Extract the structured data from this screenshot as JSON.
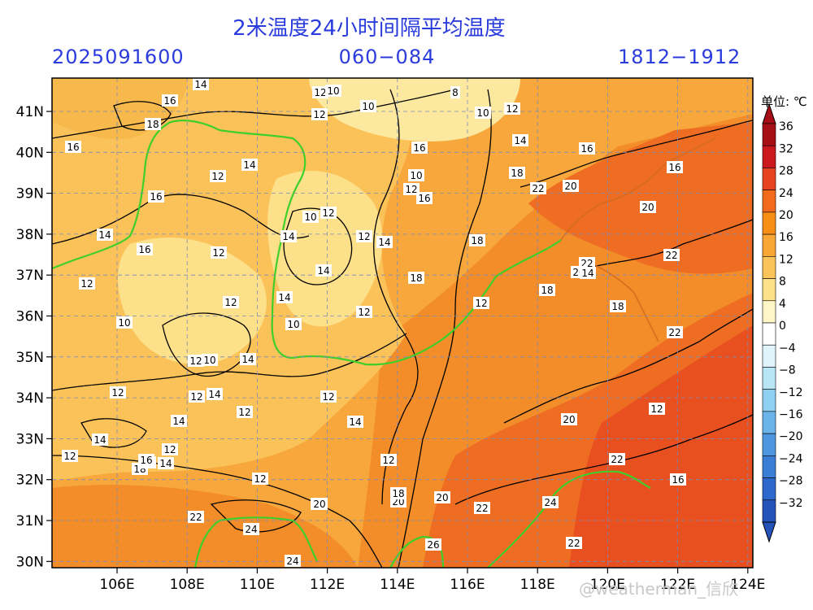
{
  "header": {
    "title": "2米温度24小时间隔平均温度",
    "run_time": "2025091600",
    "forecast_hours": "060−084",
    "valid_range": "1812−1912"
  },
  "map": {
    "lon_labels": [
      "106E",
      "108E",
      "110E",
      "112E",
      "114E",
      "116E",
      "118E",
      "120E",
      "122E",
      "124E"
    ],
    "lat_labels": [
      "41N",
      "40N",
      "39N",
      "38N",
      "37N",
      "36N",
      "35N",
      "34N",
      "33N",
      "32N",
      "31N",
      "30N"
    ],
    "contour_labels": [
      "14",
      "12",
      "10",
      "16",
      "8",
      "10",
      "12",
      "12",
      "16",
      "18",
      "10",
      "16",
      "12",
      "14",
      "16",
      "18",
      "22",
      "20",
      "16",
      "14",
      "14",
      "16",
      "10",
      "12",
      "12",
      "16",
      "10",
      "12",
      "20",
      "14",
      "14",
      "12",
      "14",
      "18",
      "22",
      "20",
      "12",
      "12",
      "14",
      "18",
      "22",
      "12",
      "12",
      "16",
      "10",
      "18",
      "12",
      "10",
      "14",
      "12",
      "14",
      "22",
      "12",
      "14",
      "14",
      "12",
      "14",
      "20",
      "12",
      "14",
      "12",
      "10",
      "24",
      "12",
      "18",
      "14",
      "16",
      "12",
      "20",
      "22",
      "20",
      "22",
      "14",
      "16",
      "12",
      "24",
      "18",
      "22",
      "24",
      "12",
      "18",
      "20",
      "16",
      "14",
      "26",
      "22",
      "24",
      "24",
      "18"
    ]
  },
  "colorbar": {
    "unit": "单位: ℃",
    "levels": [
      "36",
      "32",
      "28",
      "24",
      "20",
      "16",
      "12",
      "8",
      "4",
      "0",
      "−4",
      "−8",
      "−12",
      "−16",
      "−20",
      "−24",
      "−28",
      "−32"
    ],
    "colors": [
      "#a50f15",
      "#cb181d",
      "#e8431f",
      "#f26a1c",
      "#f78f17",
      "#f8a634",
      "#fbc45a",
      "#fde08a",
      "#fff6c8",
      "#ffffff",
      "#dff5fb",
      "#b8e6f5",
      "#8fd0f0",
      "#6ab4ea",
      "#4d97e0",
      "#3a7ed6",
      "#2f68cc",
      "#2352b8"
    ]
  },
  "watermark": "@weatherman_信欣"
}
